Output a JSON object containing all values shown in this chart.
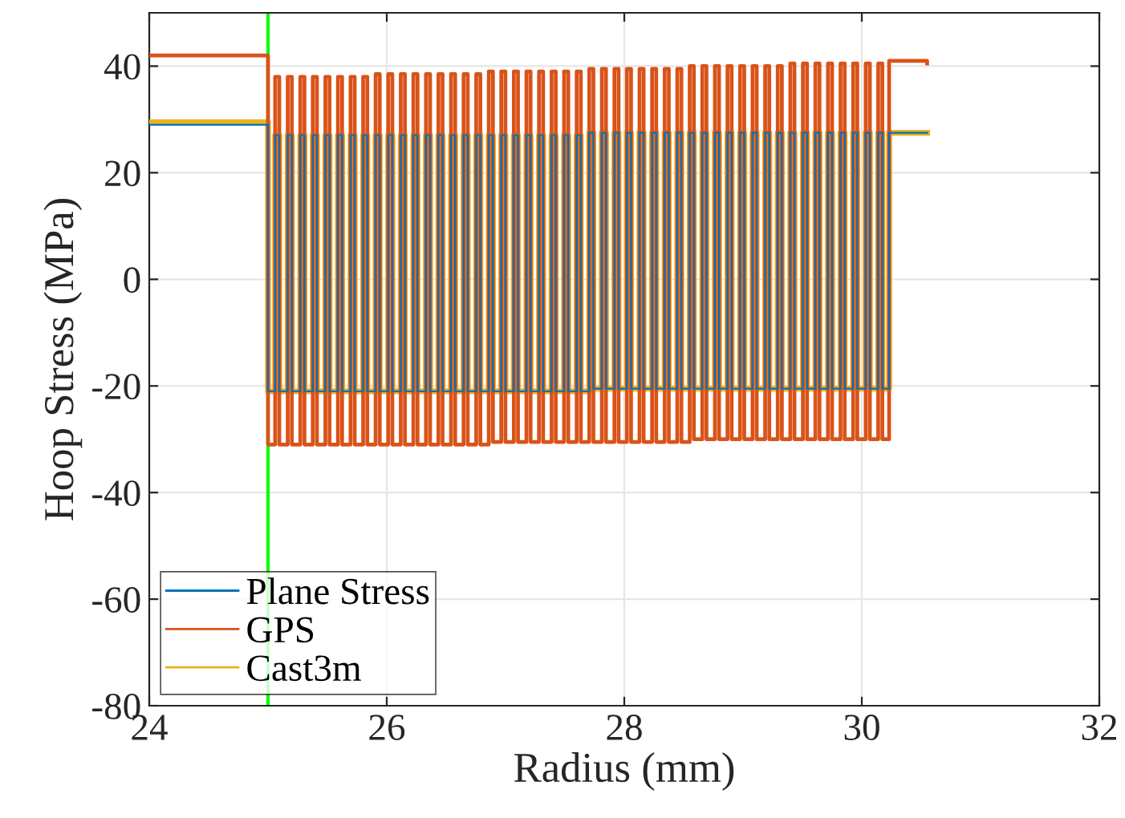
{
  "chart_data": {
    "type": "step",
    "xlabel": "Radius (mm)",
    "ylabel": "Hoop Stress (MPa)",
    "xlim": [
      24,
      32
    ],
    "xticks": [
      24,
      26,
      28,
      30,
      32
    ],
    "ylim": [
      -80,
      50
    ],
    "yticks": [
      -80,
      -60,
      -40,
      -20,
      0,
      20,
      40
    ],
    "grid": true,
    "legend": "bottom left",
    "ref_lines": [
      {
        "axis": "x",
        "value": 25,
        "color": "#00ff00"
      }
    ],
    "x": [
      24,
      25,
      25.06,
      25.095,
      25.166,
      25.201,
      25.272,
      25.307,
      25.377,
      25.412,
      25.483,
      25.518,
      25.589,
      25.624,
      25.695,
      25.73,
      25.801,
      25.836,
      25.906,
      25.941,
      26.012,
      26.047,
      26.118,
      26.153,
      26.224,
      26.259,
      26.33,
      26.365,
      26.435,
      26.47,
      26.541,
      26.576,
      26.647,
      26.682,
      26.753,
      26.788,
      26.859,
      26.894,
      26.964,
      26.999,
      27.07,
      27.105,
      27.176,
      27.211,
      27.282,
      27.317,
      27.388,
      27.423,
      27.493,
      27.528,
      27.599,
      27.634,
      27.705,
      27.74,
      27.811,
      27.846,
      27.917,
      27.952,
      28.022,
      28.057,
      28.128,
      28.163,
      28.234,
      28.269,
      28.34,
      28.375,
      28.446,
      28.481,
      28.551,
      28.586,
      28.657,
      28.692,
      28.763,
      28.798,
      28.869,
      28.904,
      28.975,
      29.01,
      29.08,
      29.115,
      29.186,
      29.221,
      29.292,
      29.327,
      29.398,
      29.433,
      29.504,
      29.539,
      29.609,
      29.644,
      29.715,
      29.75,
      29.821,
      29.856,
      29.927,
      29.962,
      30.033,
      30.068,
      30.138,
      30.173,
      30.23,
      30.55
    ],
    "series": [
      {
        "name": "Plane Stress",
        "color": "#0072bd",
        "values": [
          29,
          -21,
          27,
          -21,
          27,
          -21,
          27,
          -21,
          27,
          -21,
          27,
          -21,
          27,
          -21,
          27,
          -21,
          27,
          -21,
          27,
          -21,
          27,
          -21,
          27,
          -21,
          27,
          -21,
          27,
          -21,
          27,
          -21,
          27,
          -21,
          27,
          -21,
          27,
          -21,
          27,
          -21,
          27,
          -21,
          27,
          -21,
          27,
          -21,
          27,
          -21,
          27,
          -21,
          27,
          -21,
          27,
          -21,
          27.5,
          -20.5,
          27.5,
          -20.5,
          27.5,
          -20.5,
          27.5,
          -20.5,
          27.5,
          -20.5,
          27.5,
          -20.5,
          27.5,
          -20.5,
          27.5,
          -20.5,
          27.5,
          -20.5,
          27.5,
          -20.5,
          27.5,
          -20.5,
          27.5,
          -20.5,
          27.5,
          -20.5,
          27.5,
          -20.5,
          27.5,
          -20.5,
          27.5,
          -20.5,
          27.5,
          -20.5,
          27.5,
          -20.5,
          27.5,
          -20.5,
          27.5,
          -20.5,
          27.5,
          -20.5,
          27.5,
          -20.5,
          27.5,
          -20.5,
          27.5,
          -20.5,
          27.5,
          27.5
        ]
      },
      {
        "name": "GPS",
        "color": "#d95319",
        "values": [
          42,
          -31,
          38,
          -31,
          38,
          -31,
          38,
          -31,
          38,
          -31,
          38,
          -31,
          38,
          -31,
          38,
          -31,
          38,
          -31,
          38.5,
          -31,
          38.5,
          -31,
          38.5,
          -31,
          38.5,
          -31,
          38.5,
          -31,
          38.5,
          -31,
          38.5,
          -31,
          38.5,
          -31,
          38.5,
          -31,
          39,
          -30.5,
          39,
          -30.5,
          39,
          -30.5,
          39,
          -30.5,
          39,
          -30.5,
          39,
          -30.5,
          39,
          -30.5,
          39,
          -30.5,
          39.5,
          -30.5,
          39.5,
          -30.5,
          39.5,
          -30.5,
          39.5,
          -30.5,
          39.5,
          -30.5,
          39.5,
          -30.5,
          39.5,
          -30.5,
          39.5,
          -30.5,
          40,
          -30,
          40,
          -30,
          40,
          -30,
          40,
          -30,
          40,
          -30,
          40,
          -30,
          40,
          -30,
          40,
          -30,
          40.5,
          -30,
          40.5,
          -30,
          40.5,
          -30,
          40.5,
          -30,
          40.5,
          -30,
          40.5,
          -30,
          40.5,
          -30,
          40.5,
          -30,
          41,
          40.5
        ]
      },
      {
        "name": "Cast3m",
        "color": "#edb120",
        "values": [
          29.5,
          -21,
          27,
          -21,
          27,
          -21,
          27,
          -21,
          27,
          -21,
          27,
          -21,
          27,
          -21,
          27,
          -21,
          27,
          -21,
          27,
          -21,
          27,
          -21,
          27,
          -21,
          27,
          -21,
          27,
          -21,
          27,
          -21,
          27,
          -21,
          27,
          -21,
          27,
          -21,
          27,
          -21,
          27,
          -21,
          27,
          -21,
          27,
          -21,
          27,
          -21,
          27,
          -21,
          27,
          -21,
          27,
          -21,
          27.5,
          -20.5,
          27.5,
          -20.5,
          27.5,
          -20.5,
          27.5,
          -20.5,
          27.5,
          -20.5,
          27.5,
          -20.5,
          27.5,
          -20.5,
          27.5,
          -20.5,
          27.5,
          -20.5,
          27.5,
          -20.5,
          27.5,
          -20.5,
          27.5,
          -20.5,
          27.5,
          -20.5,
          27.5,
          -20.5,
          27.5,
          -20.5,
          27.5,
          -20.5,
          27.5,
          -20.5,
          27.5,
          -20.5,
          27.5,
          -20.5,
          27.5,
          -20.5,
          27.5,
          -20.5,
          27.5,
          -20.5,
          27.5,
          -20.5,
          27.5,
          -20.5,
          27.5,
          27.5
        ]
      }
    ]
  }
}
